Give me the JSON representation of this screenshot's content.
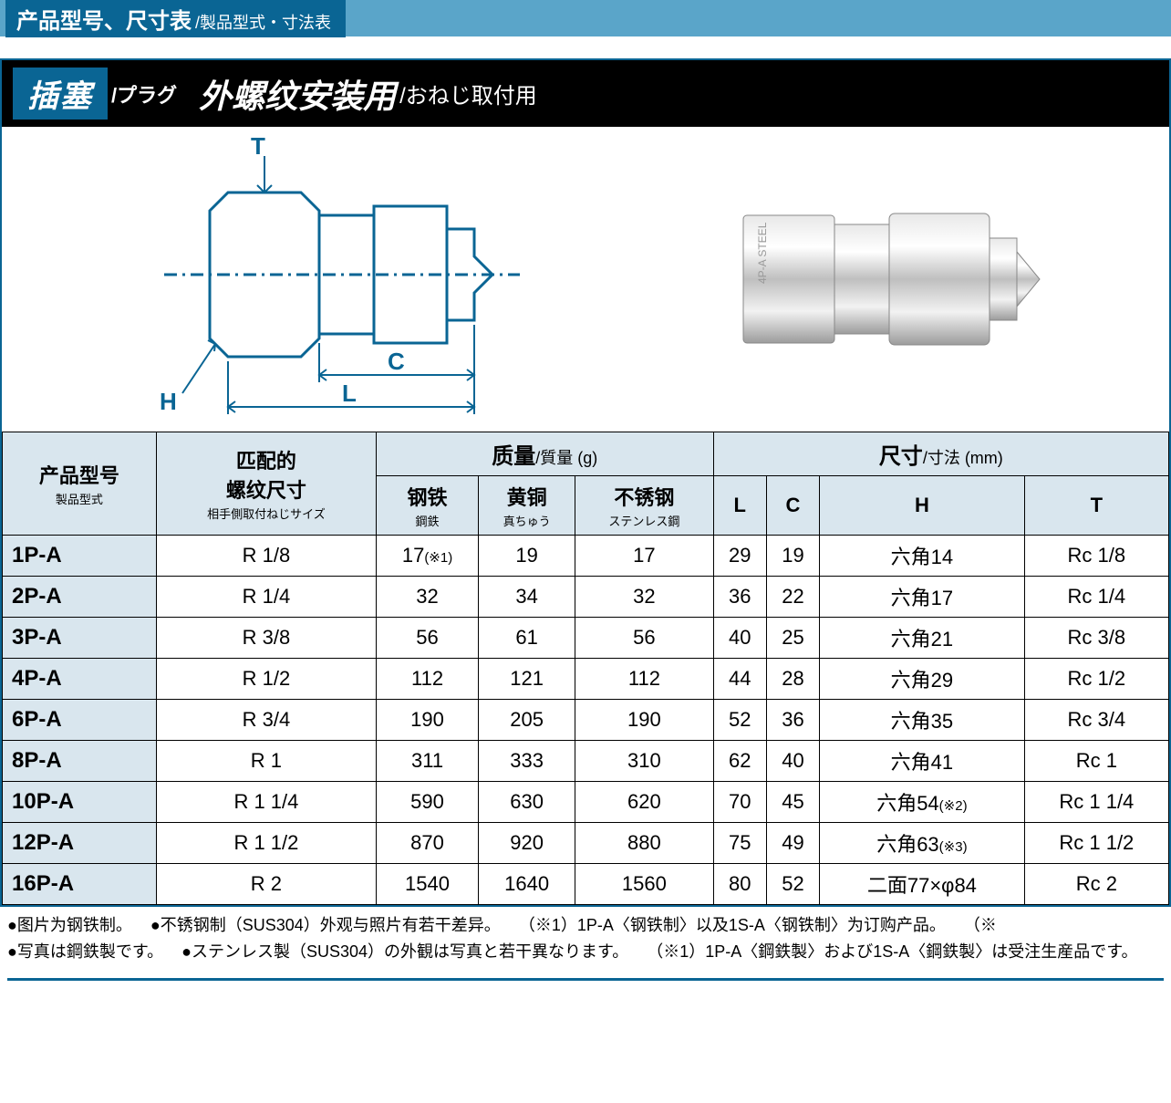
{
  "section_header": {
    "main": "产品型号、尺寸表",
    "sub": "/製品型式・寸法表"
  },
  "bar": {
    "badge_main": "插塞",
    "badge_sub": "/プラグ",
    "title_main": "外螺纹安装用",
    "title_sub": "/おねじ取付用"
  },
  "diagram": {
    "labels": {
      "T": "T",
      "H": "H",
      "L": "L",
      "C": "C"
    }
  },
  "table": {
    "head": {
      "model": {
        "main": "产品型号",
        "sub": "製品型式"
      },
      "thread": {
        "main": "匹配的\n螺纹尺寸",
        "sub": "相手側取付ねじサイズ"
      },
      "mass_group": {
        "main": "质量",
        "sub": "/質量 (g)"
      },
      "dim_group": {
        "main": "尺寸",
        "sub": "/寸法 (mm)"
      },
      "steel": {
        "main": "钢铁",
        "sub": "鋼鉄"
      },
      "brass": {
        "main": "黄铜",
        "sub": "真ちゅう"
      },
      "sus": {
        "main": "不锈钢",
        "sub": "ステンレス鋼"
      },
      "L": "L",
      "C": "C",
      "H": "H",
      "T": "T"
    },
    "rows": [
      {
        "model": "1P-A",
        "thread": "R 1/8",
        "steel": "17(※1)",
        "brass": "19",
        "sus": "17",
        "L": "29",
        "C": "19",
        "H": "六角14",
        "T": "Rc 1/8"
      },
      {
        "model": "2P-A",
        "thread": "R 1/4",
        "steel": "32",
        "brass": "34",
        "sus": "32",
        "L": "36",
        "C": "22",
        "H": "六角17",
        "T": "Rc 1/4"
      },
      {
        "model": "3P-A",
        "thread": "R 3/8",
        "steel": "56",
        "brass": "61",
        "sus": "56",
        "L": "40",
        "C": "25",
        "H": "六角21",
        "T": "Rc 3/8"
      },
      {
        "model": "4P-A",
        "thread": "R 1/2",
        "steel": "112",
        "brass": "121",
        "sus": "112",
        "L": "44",
        "C": "28",
        "H": "六角29",
        "T": "Rc 1/2"
      },
      {
        "model": "6P-A",
        "thread": "R 3/4",
        "steel": "190",
        "brass": "205",
        "sus": "190",
        "L": "52",
        "C": "36",
        "H": "六角35",
        "T": "Rc 3/4"
      },
      {
        "model": "8P-A",
        "thread": "R 1",
        "steel": "311",
        "brass": "333",
        "sus": "310",
        "L": "62",
        "C": "40",
        "H": "六角41",
        "T": "Rc 1"
      },
      {
        "model": "10P-A",
        "thread": "R 1 1/4",
        "steel": "590",
        "brass": "630",
        "sus": "620",
        "L": "70",
        "C": "45",
        "H": "六角54(※2)",
        "T": "Rc 1 1/4"
      },
      {
        "model": "12P-A",
        "thread": "R 1 1/2",
        "steel": "870",
        "brass": "920",
        "sus": "880",
        "L": "75",
        "C": "49",
        "H": "六角63(※3)",
        "T": "Rc 1 1/2"
      },
      {
        "model": "16P-A",
        "thread": "R 2",
        "steel": "1540",
        "brass": "1640",
        "sus": "1560",
        "L": "80",
        "C": "52",
        "H": "二面77×φ84",
        "T": "Rc 2"
      }
    ]
  },
  "footnotes": {
    "l1a": "●图片为钢铁制。",
    "l1b": "●不锈钢制（SUS304）外观与照片有若干差异。",
    "l1c": "（※1）1P-A〈钢铁制〉以及1S-A〈钢铁制〉为订购产品。",
    "l1d": "（※",
    "l2a": "●写真は鋼鉄製です。",
    "l2b": "●ステンレス製（SUS304）の外観は写真と若干異なります。",
    "l2c": "（※1）1P-A〈鋼鉄製〉および1S-A〈鋼鉄製〉は受注生産品です。"
  },
  "colors": {
    "brand_blue": "#0a6594",
    "light_blue_bar": "#5aa5c9",
    "header_bg": "#d9e6ee"
  }
}
